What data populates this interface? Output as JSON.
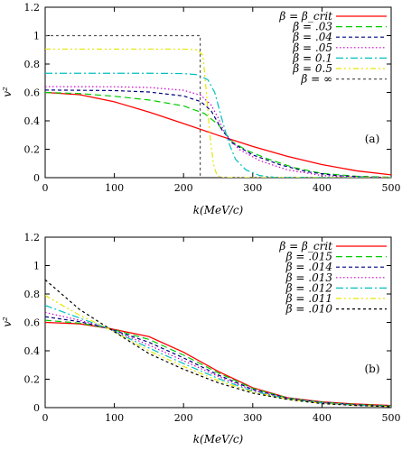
{
  "chart_data": [
    {
      "type": "line",
      "panel_label": "(a)",
      "xlabel": "k(MeV/c)",
      "ylabel": "v²",
      "xlim": [
        0,
        500
      ],
      "ylim": [
        0,
        1.2
      ],
      "xticks": [
        "0",
        "100",
        "200",
        "300",
        "400",
        "500"
      ],
      "yticks": [
        "0",
        "0.2",
        "0.4",
        "0.6",
        "0.8",
        "1",
        "1.2"
      ],
      "legend_position": "top-right",
      "series": [
        {
          "name": "β = β_crit",
          "color": "#ff0000",
          "dash": "solid",
          "points": [
            [
              0,
              0.6
            ],
            [
              50,
              0.584
            ],
            [
              100,
              0.534
            ],
            [
              150,
              0.462
            ],
            [
              200,
              0.381
            ],
            [
              250,
              0.298
            ],
            [
              300,
              0.22
            ],
            [
              350,
              0.15
            ],
            [
              400,
              0.092
            ],
            [
              450,
              0.048
            ],
            [
              500,
              0.02
            ]
          ]
        },
        {
          "name": "β = .03",
          "color": "#00cc00",
          "dash": "long",
          "points": [
            [
              0,
              0.6
            ],
            [
              50,
              0.592
            ],
            [
              100,
              0.573
            ],
            [
              150,
              0.547
            ],
            [
              200,
              0.505
            ],
            [
              230,
              0.452
            ],
            [
              250,
              0.375
            ],
            [
              270,
              0.255
            ],
            [
              290,
              0.195
            ],
            [
              320,
              0.135
            ],
            [
              360,
              0.07
            ],
            [
              400,
              0.03
            ],
            [
              450,
              0.01
            ],
            [
              500,
              0.003
            ]
          ]
        },
        {
          "name": "β = .04",
          "color": "#000080",
          "dash": "medium",
          "points": [
            [
              0,
              0.617
            ],
            [
              100,
              0.613
            ],
            [
              150,
              0.603
            ],
            [
              200,
              0.575
            ],
            [
              225,
              0.535
            ],
            [
              240,
              0.47
            ],
            [
              255,
              0.34
            ],
            [
              270,
              0.245
            ],
            [
              300,
              0.16
            ],
            [
              340,
              0.09
            ],
            [
              380,
              0.04
            ],
            [
              420,
              0.015
            ],
            [
              460,
              0.005
            ],
            [
              500,
              0.001
            ]
          ]
        },
        {
          "name": "β = .05",
          "color": "#cc00cc",
          "dash": "dotted",
          "points": [
            [
              0,
              0.641
            ],
            [
              100,
              0.64
            ],
            [
              150,
              0.635
            ],
            [
              200,
              0.615
            ],
            [
              225,
              0.58
            ],
            [
              240,
              0.51
            ],
            [
              250,
              0.42
            ],
            [
              260,
              0.31
            ],
            [
              280,
              0.2
            ],
            [
              310,
              0.12
            ],
            [
              350,
              0.055
            ],
            [
              400,
              0.015
            ],
            [
              450,
              0.003
            ],
            [
              500,
              0.001
            ]
          ]
        },
        {
          "name": "β = 0.1",
          "color": "#00c0c0",
          "dash": "dashdot",
          "points": [
            [
              0,
              0.735
            ],
            [
              150,
              0.735
            ],
            [
              200,
              0.733
            ],
            [
              220,
              0.725
            ],
            [
              235,
              0.69
            ],
            [
              245,
              0.6
            ],
            [
              255,
              0.42
            ],
            [
              265,
              0.25
            ],
            [
              275,
              0.13
            ],
            [
              290,
              0.055
            ],
            [
              310,
              0.015
            ],
            [
              330,
              0.003
            ],
            [
              500,
              0.0
            ]
          ]
        },
        {
          "name": "β = 0.5",
          "color": "#e6e600",
          "dash": "dashdotdot",
          "points": [
            [
              0,
              0.905
            ],
            [
              200,
              0.905
            ],
            [
              220,
              0.9
            ],
            [
              228,
              0.86
            ],
            [
              233,
              0.6
            ],
            [
              238,
              0.3
            ],
            [
              243,
              0.1
            ],
            [
              248,
              0.02
            ],
            [
              255,
              0.0
            ],
            [
              500,
              0.0
            ]
          ]
        },
        {
          "name": "β = ∞",
          "color": "#555555",
          "dash": "fine",
          "points": [
            [
              0,
              1.0
            ],
            [
              224,
              1.0
            ],
            [
              224,
              0.0
            ]
          ]
        }
      ]
    },
    {
      "type": "line",
      "panel_label": "(b)",
      "xlabel": "k(MeV/c)",
      "ylabel": "v²",
      "xlim": [
        0,
        500
      ],
      "ylim": [
        0,
        1.2
      ],
      "xticks": [
        "0",
        "100",
        "200",
        "300",
        "400",
        "500"
      ],
      "yticks": [
        "0",
        "0.2",
        "0.4",
        "0.6",
        "0.8",
        "1",
        "1.2"
      ],
      "legend_position": "top-right",
      "series": [
        {
          "name": "β = β_crit",
          "color": "#ff0000",
          "dash": "solid",
          "points": [
            [
              0,
              0.6
            ],
            [
              50,
              0.59
            ],
            [
              90,
              0.56
            ],
            [
              150,
              0.5
            ],
            [
              200,
              0.39
            ],
            [
              250,
              0.255
            ],
            [
              300,
              0.14
            ],
            [
              350,
              0.07
            ],
            [
              400,
              0.04
            ],
            [
              450,
              0.025
            ],
            [
              500,
              0.015
            ]
          ]
        },
        {
          "name": "β = .015",
          "color": "#00cc00",
          "dash": "long",
          "points": [
            [
              0,
              0.615
            ],
            [
              50,
              0.595
            ],
            [
              90,
              0.56
            ],
            [
              150,
              0.48
            ],
            [
              200,
              0.37
            ],
            [
              250,
              0.245
            ],
            [
              300,
              0.135
            ],
            [
              350,
              0.068
            ],
            [
              400,
              0.038
            ],
            [
              450,
              0.022
            ],
            [
              500,
              0.013
            ]
          ]
        },
        {
          "name": "β = .014",
          "color": "#000080",
          "dash": "medium",
          "points": [
            [
              0,
              0.64
            ],
            [
              50,
              0.605
            ],
            [
              90,
              0.56
            ],
            [
              150,
              0.46
            ],
            [
              200,
              0.35
            ],
            [
              250,
              0.23
            ],
            [
              300,
              0.128
            ],
            [
              350,
              0.066
            ],
            [
              400,
              0.036
            ],
            [
              450,
              0.02
            ],
            [
              500,
              0.011
            ]
          ]
        },
        {
          "name": "β = .013",
          "color": "#cc00cc",
          "dash": "dotted",
          "points": [
            [
              0,
              0.67
            ],
            [
              50,
              0.615
            ],
            [
              90,
              0.56
            ],
            [
              150,
              0.44
            ],
            [
              200,
              0.33
            ],
            [
              250,
              0.22
            ],
            [
              300,
              0.122
            ],
            [
              350,
              0.064
            ],
            [
              400,
              0.034
            ],
            [
              450,
              0.018
            ],
            [
              500,
              0.01
            ]
          ]
        },
        {
          "name": "β = .012",
          "color": "#00c0c0",
          "dash": "dashdot",
          "points": [
            [
              0,
              0.72
            ],
            [
              50,
              0.63
            ],
            [
              90,
              0.56
            ],
            [
              150,
              0.42
            ],
            [
              200,
              0.31
            ],
            [
              250,
              0.205
            ],
            [
              300,
              0.116
            ],
            [
              350,
              0.062
            ],
            [
              400,
              0.032
            ],
            [
              450,
              0.017
            ],
            [
              500,
              0.009
            ]
          ]
        },
        {
          "name": "β = .011",
          "color": "#e6e600",
          "dash": "dashdotdot",
          "points": [
            [
              0,
              0.79
            ],
            [
              50,
              0.65
            ],
            [
              90,
              0.56
            ],
            [
              150,
              0.4
            ],
            [
              200,
              0.29
            ],
            [
              250,
              0.19
            ],
            [
              300,
              0.11
            ],
            [
              350,
              0.06
            ],
            [
              400,
              0.03
            ],
            [
              450,
              0.016
            ],
            [
              500,
              0.008
            ]
          ]
        },
        {
          "name": "β = .010",
          "color": "#000000",
          "dash": "fine",
          "points": [
            [
              0,
              0.9
            ],
            [
              50,
              0.69
            ],
            [
              90,
              0.565
            ],
            [
              150,
              0.38
            ],
            [
              200,
              0.27
            ],
            [
              250,
              0.175
            ],
            [
              300,
              0.102
            ],
            [
              350,
              0.058
            ],
            [
              400,
              0.028
            ],
            [
              450,
              0.015
            ],
            [
              500,
              0.007
            ]
          ]
        }
      ]
    }
  ]
}
